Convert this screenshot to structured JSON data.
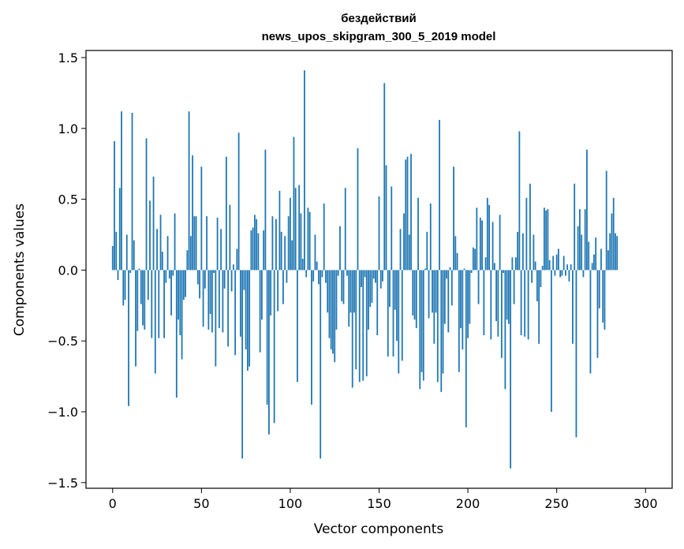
{
  "chart_data": {
    "type": "bar",
    "title": [
      "бездействий",
      "news_upos_skipgram_300_5_2019 model"
    ],
    "xlabel": "Vector components",
    "ylabel": "Components values",
    "xlim": [
      -15,
      315
    ],
    "ylim": [
      -1.54,
      1.55
    ],
    "xticks": [
      0,
      50,
      100,
      150,
      200,
      250,
      300
    ],
    "yticks": [
      -1.5,
      -1.0,
      -0.5,
      0.0,
      0.5,
      1.0,
      1.5
    ],
    "ytick_labels": [
      "−1.5",
      "−1.0",
      "−0.5",
      "0.0",
      "0.5",
      "1.0",
      "1.5"
    ],
    "xtick_labels": [
      "0",
      "50",
      "100",
      "150",
      "200",
      "250",
      "300"
    ],
    "grid": false,
    "bar_color": "#1f77b4",
    "x_start": 0,
    "values": [
      0.17,
      0.91,
      0.27,
      -0.07,
      0.58,
      1.12,
      -0.25,
      -0.21,
      0.25,
      -0.96,
      -0.02,
      1.11,
      0.21,
      -0.68,
      -0.43,
      0.01,
      -0.24,
      -0.39,
      -0.42,
      0.93,
      -0.21,
      0.49,
      -0.48,
      0.66,
      -0.73,
      0.29,
      -0.48,
      0.39,
      0.13,
      -0.48,
      -0.09,
      0.24,
      -0.06,
      -0.32,
      -0.04,
      0.4,
      -0.9,
      -0.35,
      -0.46,
      -0.63,
      -0.21,
      -0.19,
      0.14,
      1.12,
      0.24,
      0.81,
      0.38,
      0.38,
      -0.1,
      -0.2,
      0.73,
      -0.4,
      -0.13,
      0.38,
      -0.42,
      -0.31,
      -0.44,
      -0.02,
      -0.68,
      0.37,
      -0.41,
      0.29,
      -0.44,
      -0.13,
      0.8,
      -0.54,
      0.46,
      -0.15,
      0.04,
      -0.6,
      0.15,
      0.97,
      -0.47,
      -1.33,
      -0.14,
      -0.56,
      -0.71,
      -0.68,
      0.28,
      0.3,
      0.39,
      0.36,
      0.26,
      -0.58,
      -0.35,
      0.28,
      0.85,
      -0.95,
      -1.16,
      -0.32,
      0.38,
      -1.08,
      0.36,
      -0.29,
      0.56,
      0.27,
      -0.24,
      0.24,
      -0.09,
      0.38,
      0.51,
      0.21,
      0.94,
      0.58,
      -0.79,
      0.6,
      0.4,
      0.08,
      1.41,
      -0.05,
      0.44,
      0.41,
      -0.95,
      -0.08,
      0.25,
      0.06,
      -0.1,
      -1.33,
      -0.05,
      0.47,
      -0.09,
      -0.3,
      -0.48,
      -0.56,
      -0.59,
      -0.65,
      -0.42,
      -0.04,
      0.31,
      -0.22,
      -0.24,
      0.58,
      -0.04,
      -0.4,
      -0.3,
      -0.83,
      -0.3,
      -0.7,
      0.86,
      -0.79,
      -0.12,
      -0.78,
      -0.05,
      -0.75,
      -0.42,
      -0.26,
      -0.23,
      -0.06,
      -0.09,
      -0.46,
      0.52,
      -0.13,
      -0.08,
      1.32,
      0.74,
      -0.61,
      -0.26,
      0.59,
      -0.61,
      -0.28,
      -0.5,
      -0.73,
      0.29,
      -0.64,
      0.4,
      0.78,
      0.8,
      0.25,
      0.82,
      -0.32,
      -0.35,
      -0.41,
      0.51,
      -0.84,
      -0.72,
      -0.78,
      0.01,
      0.27,
      -0.34,
      0.47,
      -0.3,
      -0.52,
      -0.3,
      -0.79,
      1.06,
      -0.86,
      -0.73,
      -0.38,
      -0.06,
      -0.44,
      0.02,
      -0.25,
      0.73,
      0.24,
      0.12,
      -0.72,
      -0.41,
      -0.56,
      0.01,
      -1.11,
      -0.48,
      -0.38,
      -0.02,
      0.16,
      0.15,
      0.44,
      -0.24,
      0.37,
      0.35,
      -0.46,
      0.09,
      0.51,
      0.46,
      -0.49,
      0.34,
      0.05,
      -0.36,
      -0.47,
      0.39,
      -0.62,
      -0.02,
      -0.84,
      -0.35,
      -0.38,
      -1.4,
      0.09,
      -0.24,
      0.09,
      0.27,
      0.98,
      -0.46,
      0.26,
      -0.47,
      0.51,
      -0.49,
      0.61,
      -0.09,
      0.25,
      0.06,
      -0.22,
      -0.52,
      -0.12,
      0.03,
      0.44,
      0.42,
      0.43,
      0.07,
      -1.0,
      0.1,
      -0.04,
      0.11,
      0.15,
      -0.05,
      -0.04,
      0.1,
      -0.04,
      0.04,
      -0.08,
      0.04,
      -0.52,
      0.61,
      -1.18,
      0.31,
      0.43,
      0.25,
      -0.05,
      0.43,
      0.85,
      0.2,
      -0.73,
      0.05,
      0.11,
      0.23,
      -0.62,
      -0.27,
      0.15,
      -0.37,
      -0.42,
      0.7,
      0.14,
      0.26,
      0.4,
      0.51,
      0.26,
      0.24
    ]
  }
}
